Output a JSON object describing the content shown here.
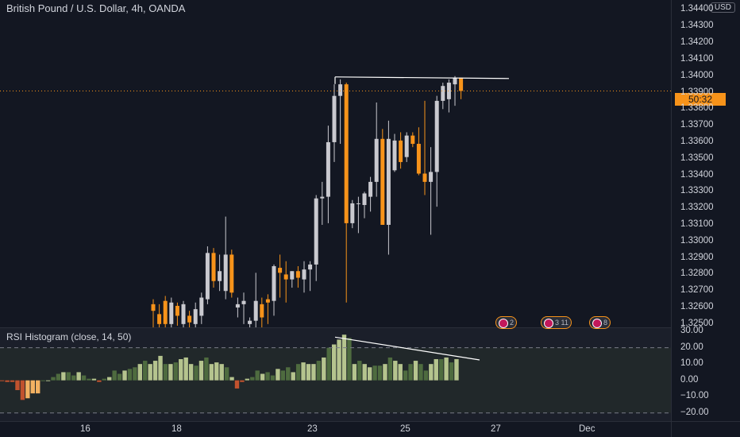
{
  "header": {
    "title": "British Pound / U.S. Dollar, 4h, OANDA",
    "currency": "USD",
    "countdown": "50:32"
  },
  "rsi_panel": {
    "title": "RSI Histogram (close, 14, 50)"
  },
  "events": [
    {
      "label": "2"
    },
    {
      "label": "3 11"
    },
    {
      "label": "8"
    }
  ],
  "colors": {
    "background": "#131722",
    "bull_candle": "#c9c9cf",
    "bear_candle": "#f7931a",
    "hist_light": "#b5c48e",
    "hist_dark": "#4e6b3f",
    "hist_neg": "#c1522e",
    "hist_neg_light": "#f3b162",
    "trendline": "#ffffff"
  },
  "chart_data": [
    {
      "type": "candlestick",
      "title": "British Pound / U.S. Dollar, 4h, OANDA",
      "y_axis_ticks": [
        "1.34400",
        "1.34300",
        "1.34200",
        "1.34100",
        "1.34000",
        "1.33900",
        "1.33800",
        "1.33700",
        "1.33600",
        "1.33500",
        "1.33400",
        "1.33300",
        "1.33200",
        "1.33100",
        "1.33000",
        "1.32900",
        "1.32800",
        "1.32700",
        "1.32600",
        "1.32500"
      ],
      "ylim": [
        1.3248,
        1.3446
      ],
      "x_axis_labels": [
        "16",
        "18",
        "23",
        "25",
        "27",
        "Dec"
      ],
      "candles": [
        {
          "o": 1.3262,
          "h": 1.3265,
          "l": 1.3248,
          "c": 1.3258
        },
        {
          "o": 1.3256,
          "h": 1.3262,
          "l": 1.3248,
          "c": 1.325
        },
        {
          "o": 1.3264,
          "h": 1.3267,
          "l": 1.3248,
          "c": 1.325
        },
        {
          "o": 1.325,
          "h": 1.3266,
          "l": 1.3248,
          "c": 1.3263
        },
        {
          "o": 1.3261,
          "h": 1.3263,
          "l": 1.3249,
          "c": 1.3255
        },
        {
          "o": 1.325,
          "h": 1.3264,
          "l": 1.3248,
          "c": 1.3262
        },
        {
          "o": 1.3255,
          "h": 1.3258,
          "l": 1.3245,
          "c": 1.3251
        },
        {
          "o": 1.325,
          "h": 1.3263,
          "l": 1.3248,
          "c": 1.3259
        },
        {
          "o": 1.3255,
          "h": 1.3269,
          "l": 1.325,
          "c": 1.3266
        },
        {
          "o": 1.3265,
          "h": 1.3297,
          "l": 1.3262,
          "c": 1.3293
        },
        {
          "o": 1.3293,
          "h": 1.3296,
          "l": 1.3272,
          "c": 1.3276
        },
        {
          "o": 1.3276,
          "h": 1.3292,
          "l": 1.327,
          "c": 1.3282
        },
        {
          "o": 1.327,
          "h": 1.3315,
          "l": 1.3265,
          "c": 1.3292
        },
        {
          "o": 1.3292,
          "h": 1.3295,
          "l": 1.3266,
          "c": 1.3269
        },
        {
          "o": 1.326,
          "h": 1.3266,
          "l": 1.3254,
          "c": 1.3262
        },
        {
          "o": 1.3262,
          "h": 1.3269,
          "l": 1.325,
          "c": 1.3264
        },
        {
          "o": 1.325,
          "h": 1.3254,
          "l": 1.3248,
          "c": 1.3252
        },
        {
          "o": 1.3252,
          "h": 1.3281,
          "l": 1.3248,
          "c": 1.3264
        },
        {
          "o": 1.3262,
          "h": 1.3266,
          "l": 1.3248,
          "c": 1.3254
        },
        {
          "o": 1.3265,
          "h": 1.3268,
          "l": 1.325,
          "c": 1.3263
        },
        {
          "o": 1.3264,
          "h": 1.3286,
          "l": 1.3255,
          "c": 1.3285
        },
        {
          "o": 1.3284,
          "h": 1.3292,
          "l": 1.3266,
          "c": 1.3281
        },
        {
          "o": 1.328,
          "h": 1.3288,
          "l": 1.3263,
          "c": 1.3277
        },
        {
          "o": 1.3277,
          "h": 1.3282,
          "l": 1.3272,
          "c": 1.3282
        },
        {
          "o": 1.3282,
          "h": 1.3285,
          "l": 1.3272,
          "c": 1.3278
        },
        {
          "o": 1.3277,
          "h": 1.3288,
          "l": 1.3269,
          "c": 1.3283
        },
        {
          "o": 1.3283,
          "h": 1.3288,
          "l": 1.327,
          "c": 1.3286
        },
        {
          "o": 1.3286,
          "h": 1.3328,
          "l": 1.3276,
          "c": 1.3326
        },
        {
          "o": 1.3326,
          "h": 1.3336,
          "l": 1.331,
          "c": 1.3327
        },
        {
          "o": 1.3327,
          "h": 1.337,
          "l": 1.3311,
          "c": 1.336
        },
        {
          "o": 1.336,
          "h": 1.3395,
          "l": 1.3348,
          "c": 1.3388
        },
        {
          "o": 1.3388,
          "h": 1.3398,
          "l": 1.3359,
          "c": 1.3395
        },
        {
          "o": 1.3395,
          "h": 1.3396,
          "l": 1.3263,
          "c": 1.3311
        },
        {
          "o": 1.3311,
          "h": 1.3325,
          "l": 1.3308,
          "c": 1.3323
        },
        {
          "o": 1.3323,
          "h": 1.3327,
          "l": 1.3305,
          "c": 1.3323
        },
        {
          "o": 1.3322,
          "h": 1.333,
          "l": 1.3314,
          "c": 1.3329
        },
        {
          "o": 1.3327,
          "h": 1.3339,
          "l": 1.3318,
          "c": 1.3336
        },
        {
          "o": 1.3336,
          "h": 1.3384,
          "l": 1.3327,
          "c": 1.3362
        },
        {
          "o": 1.3362,
          "h": 1.3368,
          "l": 1.331,
          "c": 1.331
        },
        {
          "o": 1.331,
          "h": 1.3373,
          "l": 1.3292,
          "c": 1.3362
        },
        {
          "o": 1.3343,
          "h": 1.3365,
          "l": 1.3342,
          "c": 1.3361
        },
        {
          "o": 1.3361,
          "h": 1.3366,
          "l": 1.3344,
          "c": 1.3348
        },
        {
          "o": 1.3351,
          "h": 1.3366,
          "l": 1.3348,
          "c": 1.3364
        },
        {
          "o": 1.3364,
          "h": 1.3366,
          "l": 1.3357,
          "c": 1.3359
        },
        {
          "o": 1.3359,
          "h": 1.3369,
          "l": 1.334,
          "c": 1.3341
        },
        {
          "o": 1.3341,
          "h": 1.3385,
          "l": 1.3328,
          "c": 1.3336
        },
        {
          "o": 1.3336,
          "h": 1.3357,
          "l": 1.3304,
          "c": 1.3342
        },
        {
          "o": 1.3342,
          "h": 1.3388,
          "l": 1.3321,
          "c": 1.3385
        },
        {
          "o": 1.3385,
          "h": 1.3396,
          "l": 1.338,
          "c": 1.3394
        },
        {
          "o": 1.3386,
          "h": 1.3398,
          "l": 1.3378,
          "c": 1.3396
        },
        {
          "o": 1.3395,
          "h": 1.34,
          "l": 1.3382,
          "c": 1.3399
        },
        {
          "o": 1.3399,
          "h": 1.3399,
          "l": 1.3386,
          "c": 1.3391
        }
      ],
      "current_price_marker": "50:32",
      "resistance_line": {
        "y": 1.3399
      }
    },
    {
      "type": "bar",
      "title": "RSI Histogram (close, 14, 50)",
      "y_axis_ticks": [
        "30.00",
        "20.00",
        "10.00",
        "0.00",
        "−10.00",
        "−20.00"
      ],
      "ylim": [
        -25,
        32
      ],
      "series": [
        {
          "values": [
            -0.5,
            -1,
            -1,
            -6,
            -12,
            -11,
            -8,
            -8,
            0,
            0,
            2,
            4,
            5,
            5,
            3,
            5,
            3,
            1,
            1,
            -1,
            1,
            2,
            6,
            4,
            6,
            7,
            8,
            10,
            12,
            10,
            12,
            15,
            10,
            10,
            11,
            13,
            14,
            10,
            9,
            12,
            14,
            10,
            11,
            10,
            8,
            2,
            -5,
            -1,
            1,
            2,
            6,
            4,
            5,
            3,
            7,
            6,
            8,
            5,
            10,
            11,
            10,
            10,
            12,
            14,
            20,
            22,
            25,
            28,
            26,
            10,
            12,
            10,
            8,
            9,
            9,
            10,
            14,
            12,
            10,
            6,
            10,
            12,
            10,
            6,
            10,
            13,
            13,
            14,
            11,
            13
          ]
        }
      ],
      "reference_lines": [
        20,
        -20
      ],
      "trendline": {
        "from": 26.5,
        "to": 12.5
      }
    }
  ]
}
